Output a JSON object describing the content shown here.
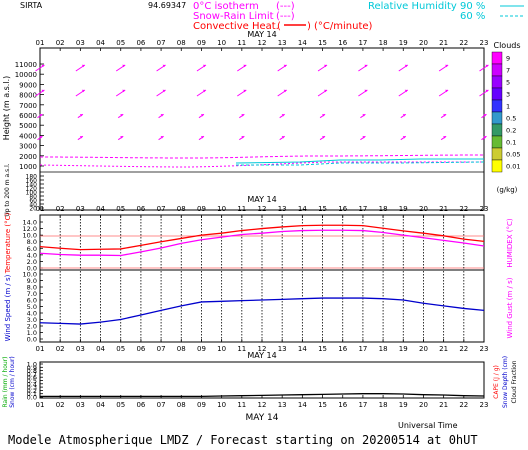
{
  "header": {
    "site": "SIRTA",
    "coord": "94.69347",
    "legend_isotherm": "0°C isotherm",
    "legend_snow_rain": "Snow-Rain Limit",
    "legend_convective": "Convective Heat.",
    "legend_units": "(°C/minute)",
    "legend_rh": "Relative Humidity",
    "rh_90": "90 %",
    "rh_60": "60 %",
    "isotherm_dashes": "(---)",
    "snow_dashes": "(---)",
    "colors": {
      "magenta": "#ff00ff",
      "red": "#ff0000",
      "cyan": "#00c8d8",
      "blue": "#0000cc"
    }
  },
  "footer": {
    "title": "Modele Atmospherique LMDZ / Forecast starting on 20200514 at 0hUT",
    "universal_time": "Universal Time"
  },
  "chart_data": [
    {
      "type": "heatmap",
      "name": "profile",
      "date_label": "MAY 14",
      "x_ticks": [
        "01",
        "02",
        "03",
        "04",
        "05",
        "06",
        "07",
        "08",
        "09",
        "10",
        "11",
        "12",
        "13",
        "14",
        "15",
        "16",
        "17",
        "18",
        "19",
        "20",
        "21",
        "22",
        "23"
      ],
      "ylabel": "Height  (m a.s.l.)",
      "ylabel_lower": "Up to 200 m a.s.l.",
      "y_ticks": [
        "11000",
        "10000",
        "9000",
        "8000",
        "7000",
        "6000",
        "5000",
        "4000",
        "3000",
        "2000",
        "1000",
        "180",
        "160",
        "140",
        "120",
        "100",
        "80",
        "60",
        "40",
        "20"
      ],
      "clouds": {
        "title": "Clouds",
        "unit": "(g/kg)",
        "levels": [
          "9",
          "7",
          "5",
          "3",
          "1",
          "0.5",
          "0.2",
          "0.1",
          "0.05",
          "0.01"
        ],
        "colors": [
          "#ff00ff",
          "#cc00ff",
          "#9900ff",
          "#6600ff",
          "#3333ff",
          "#3399cc",
          "#339966",
          "#66bb33",
          "#cccc33",
          "#ffff00"
        ]
      }
    },
    {
      "type": "line",
      "name": "temperature",
      "date_label": "MAY 14",
      "x": [
        1,
        2,
        3,
        4,
        5,
        6,
        7,
        8,
        9,
        10,
        11,
        12,
        13,
        14,
        15,
        16,
        17,
        18,
        19,
        20,
        21,
        22,
        23
      ],
      "series": [
        {
          "name": "Temperature",
          "color": "#ff0000",
          "values": [
            6.5,
            6.0,
            5.6,
            5.7,
            5.8,
            6.9,
            8.0,
            9.0,
            10.0,
            10.6,
            11.4,
            12.0,
            12.5,
            12.9,
            13.0,
            13.0,
            12.9,
            12.1,
            11.3,
            10.6,
            9.8,
            8.8,
            8.1
          ]
        },
        {
          "name": "HUMIDEX",
          "color": "#ff00ff",
          "values": [
            4.5,
            4.1,
            3.9,
            3.9,
            3.8,
            4.9,
            6.1,
            7.5,
            8.6,
            9.4,
            10.2,
            10.6,
            11.1,
            11.4,
            11.5,
            11.5,
            11.4,
            10.8,
            10.0,
            9.2,
            8.4,
            7.6,
            6.7
          ]
        }
      ],
      "ylabel": "Temperature (°C)",
      "ylabel_right": "HUMIDEX (°C)",
      "y_ticks": [
        "14.0",
        "12.0",
        "10.0",
        "8.0",
        "6.0",
        "4.0",
        "2.0",
        "0.0"
      ],
      "ylim": [
        0,
        14
      ]
    },
    {
      "type": "line",
      "name": "wind",
      "date_label": "MAY 14",
      "x": [
        1,
        2,
        3,
        4,
        5,
        6,
        7,
        8,
        9,
        10,
        11,
        12,
        13,
        14,
        15,
        16,
        17,
        18,
        19,
        20,
        21,
        22,
        23
      ],
      "series": [
        {
          "name": "Wind Speed",
          "color": "#0000cc",
          "values": [
            2.5,
            2.4,
            2.3,
            2.6,
            3.0,
            3.7,
            4.4,
            5.1,
            5.7,
            5.8,
            5.9,
            6.0,
            6.1,
            6.2,
            6.3,
            6.3,
            6.3,
            6.2,
            6.0,
            5.5,
            5.1,
            4.7,
            4.4
          ]
        }
      ],
      "ylabel": "Wind Speed (m / s)",
      "ylabel_right": "Wind Gust (m / s)",
      "y_ticks": [
        "10.0",
        "9.0",
        "8.0",
        "7.0",
        "6.0",
        "5.0",
        "4.0",
        "3.0",
        "2.0",
        "1.0",
        "0.0"
      ],
      "ylim": [
        0,
        10
      ]
    },
    {
      "type": "line",
      "name": "precip",
      "date_label": "MAY 14",
      "x": [
        1,
        2,
        3,
        4,
        5,
        6,
        7,
        8,
        9,
        10,
        11,
        12,
        13,
        14,
        15,
        16,
        17,
        18,
        19,
        20,
        21,
        22,
        23
      ],
      "series": [
        {
          "name": "Cloud Fraction",
          "color": "#000000",
          "values": [
            0.02,
            0.02,
            0.02,
            0.02,
            0.02,
            0.02,
            0.02,
            0.02,
            0.02,
            0.03,
            0.04,
            0.05,
            0.06,
            0.07,
            0.08,
            0.09,
            0.1,
            0.1,
            0.09,
            0.07,
            0.06,
            0.04,
            0.03
          ]
        }
      ],
      "ylabel": "Rain (mm / hour)",
      "ylabel2": "Snow (cm / hour)",
      "ylabel_right": "CAPE (J / g)",
      "ylabel_right2": "Snow Depth (cm)",
      "ylabel_right3": "Cloud Fraction",
      "y_ticks": [
        "1.0",
        "0.9",
        "0.8",
        "0.7",
        "0.6",
        "0.5",
        "0.4",
        "0.3",
        "0.2",
        "0.1",
        "0.0"
      ],
      "ylim": [
        0,
        1
      ]
    }
  ]
}
